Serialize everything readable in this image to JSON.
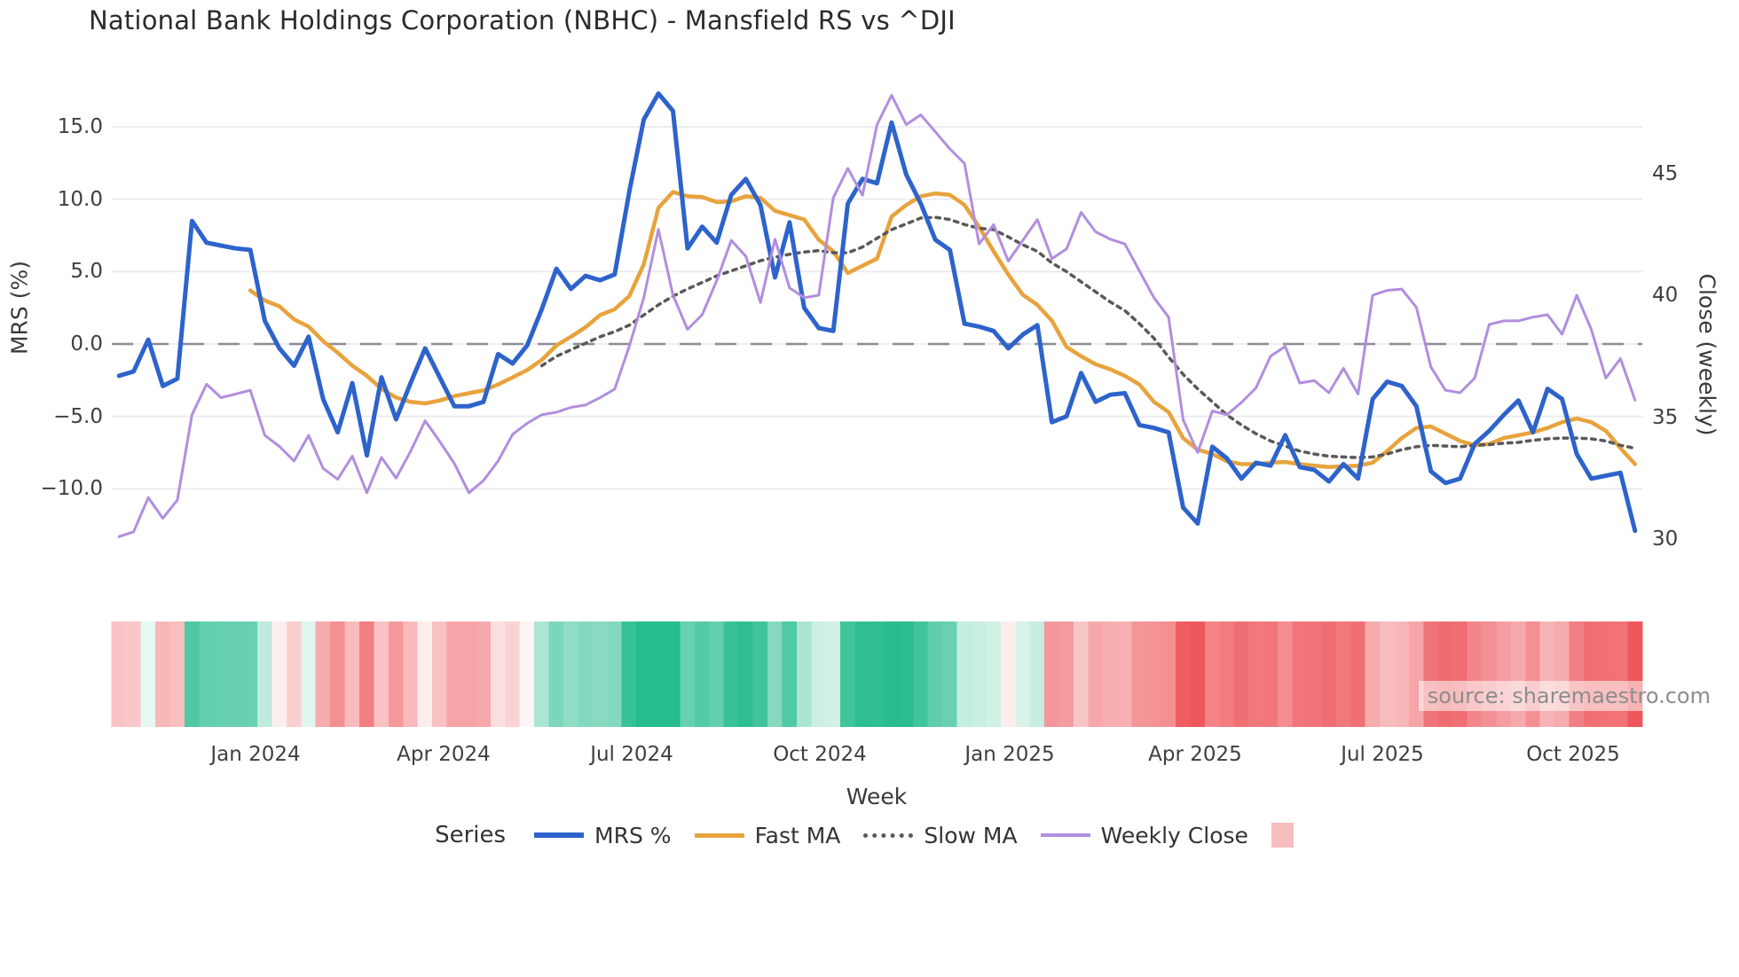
{
  "title": "National Bank Holdings Corporation (NBHC) - Mansfield RS vs ^DJI",
  "axes": {
    "left": {
      "label": "MRS (%)",
      "ticks": [
        "15.0",
        "10.0",
        "5.0",
        "0.0",
        "−5.0",
        "−10.0"
      ]
    },
    "right": {
      "label": "Close (weekly)",
      "ticks": [
        "45",
        "40",
        "35",
        "30"
      ]
    },
    "x": {
      "label": "Week",
      "ticks": [
        "Jan 2024",
        "Apr 2024",
        "Jul 2024",
        "Oct 2024",
        "Jan 2025",
        "Apr 2025",
        "Jul 2025",
        "Oct 2025"
      ]
    }
  },
  "legend": {
    "title": "Series",
    "items": [
      {
        "label": "MRS %",
        "color": "#2d63cb",
        "style": "solid",
        "width": 6
      },
      {
        "label": "Fast MA",
        "color": "#e8a33c",
        "style": "solid",
        "width": 5
      },
      {
        "label": "Slow MA",
        "color": "#595959",
        "style": "dotted",
        "width": 5
      },
      {
        "label": "Weekly Close",
        "color": "#b18ede",
        "style": "solid",
        "width": 4
      },
      {
        "label": "",
        "color": "#f7bcbe",
        "style": "swatch"
      }
    ]
  },
  "source_note": "source: sharemaestro.com",
  "chart_data": {
    "type": "line",
    "title": "National Bank Holdings Corporation (NBHC) - Mansfield RS vs ^DJI",
    "xlabel": "Week",
    "ylabel_left": "MRS (%)",
    "ylabel_right": "Close (weekly)",
    "x_start": "2023-10-30",
    "x_interval": "weekly",
    "weeks": 105,
    "x_tick_labels": [
      "Jan 2024",
      "Apr 2024",
      "Jul 2024",
      "Oct 2024",
      "Jan 2025",
      "Apr 2025",
      "Jul 2025",
      "Oct 2025"
    ],
    "left_tick_values": [
      15,
      10,
      5,
      0,
      -5,
      -10
    ],
    "right_tick_values": [
      45,
      40,
      35,
      30
    ],
    "ylim_left": [
      -15,
      18.5
    ],
    "ylim_right": [
      28.8,
      49.0
    ],
    "grid": "horizontal-only",
    "zero_line": {
      "value": 0,
      "axis": "left",
      "style": "dashed",
      "color": "#8b8b96"
    },
    "legend_position": "bottom",
    "series": [
      {
        "name": "MRS %",
        "axis": "left",
        "color": "#2d63cb",
        "line": "solid",
        "values": [
          -2.2,
          -1.9,
          0.3,
          -2.9,
          -2.4,
          8.5,
          7.0,
          6.8,
          6.6,
          6.5,
          1.6,
          -0.3,
          -1.5,
          0.5,
          -3.8,
          -6.1,
          -2.7,
          -7.7,
          -2.3,
          -5.2,
          -2.7,
          -0.3,
          -2.3,
          -4.3,
          -4.3,
          -4.0,
          -0.7,
          -1.35,
          -0.1,
          2.4,
          5.2,
          3.8,
          4.7,
          4.4,
          4.8,
          10.5,
          15.5,
          17.3,
          16.1,
          6.6,
          8.1,
          7.0,
          10.3,
          11.4,
          9.6,
          4.6,
          8.4,
          2.5,
          1.1,
          0.9,
          9.7,
          11.4,
          11.1,
          15.3,
          11.7,
          9.7,
          7.2,
          6.5,
          1.4,
          1.2,
          0.9,
          -0.3,
          0.65,
          1.3,
          -5.4,
          -5.0,
          -2.0,
          -4.0,
          -3.5,
          -3.4,
          -5.6,
          -5.8,
          -6.1,
          -11.3,
          -12.4,
          -7.1,
          -7.9,
          -9.3,
          -8.2,
          -8.4,
          -6.3,
          -8.5,
          -8.7,
          -9.5,
          -8.3,
          -9.3,
          -3.8,
          -2.6,
          -2.9,
          -4.3,
          -8.8,
          -9.6,
          -9.3,
          -6.9,
          -6.0,
          -4.9,
          -3.9,
          -6.1,
          -3.1,
          -3.8,
          -7.6,
          -9.3,
          -9.1,
          -8.9,
          -12.9
        ]
      },
      {
        "name": "Fast MA",
        "axis": "left",
        "color": "#e8a33c",
        "line": "solid",
        "values": [
          null,
          null,
          null,
          null,
          null,
          null,
          null,
          null,
          null,
          3.7,
          3.0,
          2.6,
          1.7,
          1.2,
          0.2,
          -0.6,
          -1.5,
          -2.2,
          -3.1,
          -3.7,
          -4.0,
          -4.1,
          -3.9,
          -3.6,
          -3.4,
          -3.2,
          -2.8,
          -2.3,
          -1.8,
          -1.1,
          -0.1,
          0.5,
          1.15,
          2.0,
          2.4,
          3.3,
          5.5,
          9.4,
          10.5,
          10.2,
          10.15,
          9.8,
          9.85,
          10.2,
          10.1,
          9.2,
          8.9,
          8.6,
          7.2,
          6.4,
          4.9,
          5.4,
          5.9,
          8.8,
          9.6,
          10.2,
          10.4,
          10.3,
          9.6,
          8.1,
          6.4,
          4.8,
          3.4,
          2.7,
          1.6,
          -0.2,
          -0.85,
          -1.4,
          -1.75,
          -2.2,
          -2.8,
          -4.0,
          -4.7,
          -6.5,
          -7.3,
          -7.6,
          -8.1,
          -8.3,
          -8.3,
          -8.2,
          -8.15,
          -8.3,
          -8.4,
          -8.5,
          -8.45,
          -8.4,
          -8.2,
          -7.4,
          -6.5,
          -5.8,
          -5.7,
          -6.2,
          -6.7,
          -7.0,
          -6.9,
          -6.5,
          -6.3,
          -6.1,
          -5.8,
          -5.4,
          -5.15,
          -5.4,
          -6.0,
          -7.2,
          -8.3
        ]
      },
      {
        "name": "Slow MA",
        "axis": "left",
        "color": "#595959",
        "line": "dotted",
        "values": [
          null,
          null,
          null,
          null,
          null,
          null,
          null,
          null,
          null,
          null,
          null,
          null,
          null,
          null,
          null,
          null,
          null,
          null,
          null,
          null,
          null,
          null,
          null,
          null,
          null,
          null,
          null,
          null,
          null,
          -1.5,
          -0.85,
          -0.4,
          0.05,
          0.5,
          0.85,
          1.3,
          2.0,
          2.7,
          3.3,
          3.8,
          4.25,
          4.7,
          5.05,
          5.4,
          5.75,
          6.0,
          6.2,
          6.35,
          6.45,
          6.3,
          6.3,
          6.7,
          7.3,
          7.9,
          8.3,
          8.7,
          8.75,
          8.6,
          8.25,
          8.0,
          7.9,
          7.4,
          6.85,
          6.4,
          5.6,
          5.0,
          4.3,
          3.6,
          2.9,
          2.3,
          1.4,
          0.4,
          -0.9,
          -2.1,
          -3.1,
          -4.0,
          -4.9,
          -5.6,
          -6.2,
          -6.7,
          -7.05,
          -7.4,
          -7.6,
          -7.75,
          -7.8,
          -7.85,
          -7.8,
          -7.6,
          -7.3,
          -7.1,
          -7.0,
          -7.05,
          -7.1,
          -7.0,
          -6.95,
          -6.85,
          -6.8,
          -6.65,
          -6.55,
          -6.5,
          -6.5,
          -6.55,
          -6.7,
          -7.0,
          -7.2
        ]
      },
      {
        "name": "Weekly Close",
        "axis": "right",
        "color": "#b18ede",
        "line": "solid",
        "values": [
          30.1,
          30.3,
          31.7,
          30.85,
          31.6,
          35.1,
          36.35,
          35.8,
          35.95,
          36.1,
          34.25,
          33.8,
          33.2,
          34.25,
          32.9,
          32.45,
          33.4,
          31.9,
          33.35,
          32.5,
          33.6,
          34.85,
          34.0,
          33.1,
          31.9,
          32.4,
          33.2,
          34.3,
          34.75,
          35.1,
          35.2,
          35.4,
          35.5,
          35.8,
          36.15,
          37.9,
          39.9,
          42.7,
          40.0,
          38.6,
          39.2,
          40.6,
          42.25,
          41.6,
          39.7,
          42.3,
          40.3,
          39.9,
          40.0,
          44.0,
          45.2,
          44.1,
          47.0,
          48.2,
          47.0,
          47.4,
          46.7,
          46.0,
          45.4,
          42.1,
          42.9,
          41.4,
          42.25,
          43.1,
          41.5,
          41.9,
          43.4,
          42.6,
          42.3,
          42.1,
          41.0,
          39.9,
          39.1,
          34.9,
          33.55,
          35.25,
          35.1,
          35.6,
          36.2,
          37.5,
          37.9,
          36.4,
          36.5,
          36.0,
          37.0,
          35.95,
          40.0,
          40.2,
          40.25,
          39.5,
          37.05,
          36.1,
          36.0,
          36.6,
          38.8,
          38.95,
          38.95,
          39.1,
          39.2,
          38.4,
          40.0,
          38.6,
          36.6,
          37.4,
          35.7
        ]
      }
    ],
    "heatmap": {
      "basis": "MRS % weekly values (green = positive, red = negative)",
      "positive_color": "#26bc8e",
      "negative_color": "#ee575c",
      "cells": 105
    }
  }
}
